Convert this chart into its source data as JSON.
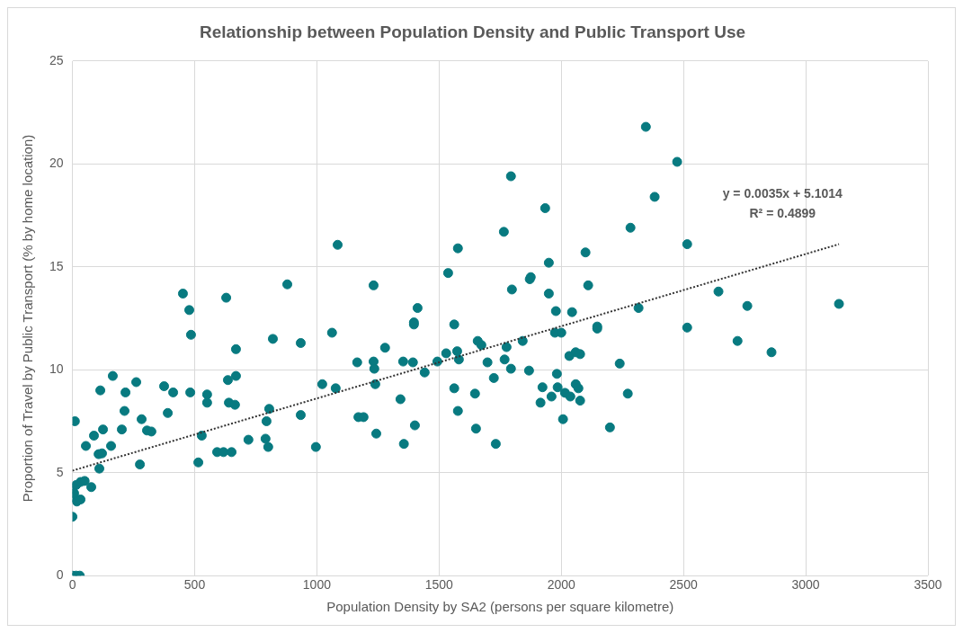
{
  "chart_data": {
    "type": "scatter",
    "title": "Relationship between Population Density and Public Transport Use",
    "xlabel": "Population Density by SA2 (persons per square kilometre)",
    "ylabel": "Proportion of Travel by Public Transport (% by home location)",
    "xlim": [
      0,
      3500
    ],
    "xticks": [
      0,
      500,
      1000,
      1500,
      2000,
      2500,
      3000,
      3500
    ],
    "ylim": [
      0,
      25
    ],
    "yticks": [
      0,
      5,
      10,
      15,
      20,
      25
    ],
    "grid": true,
    "legend": false,
    "marker": "circle",
    "annotations": [
      "y = 0.0035x + 5.1014",
      "R² = 0.4899"
    ],
    "series": [
      {
        "color": "#087a80",
        "x": [
          0,
          15,
          30,
          0,
          0,
          15,
          33,
          50,
          77,
          7,
          18,
          33,
          7,
          10,
          55,
          88,
          107,
          121,
          110,
          125,
          158,
          114,
          165,
          202,
          213,
          217,
          261,
          276,
          283,
          305,
          323,
          375,
          390,
          412,
          452,
          478,
          485,
          482,
          515,
          529,
          551,
          551,
          592,
          618,
          629,
          636,
          640,
          651,
          665,
          669,
          669,
          720,
          790,
          794,
          801,
          805,
          820,
          879,
          934,
          934,
          996,
          1022,
          1062,
          1077,
          1085,
          1165,
          1170,
          1191,
          1232,
          1232,
          1235,
          1239,
          1243,
          1279,
          1342,
          1353,
          1356,
          1393,
          1397,
          1397,
          1401,
          1412,
          1441,
          1493,
          1529,
          1537,
          1562,
          1562,
          1574,
          1577,
          1577,
          1581,
          1647,
          1651,
          1658,
          1673,
          1698,
          1724,
          1732,
          1765,
          1768,
          1776,
          1794,
          1794,
          1798,
          1842,
          1868,
          1871,
          1875,
          1915,
          1923,
          1934,
          1949,
          1949,
          1960,
          1974,
          1978,
          1982,
          1985,
          2000,
          2007,
          2015,
          2033,
          2037,
          2044,
          2059,
          2059,
          2070,
          2077,
          2077,
          2099,
          2110,
          2147,
          2147,
          2199,
          2239,
          2272,
          2283,
          2316,
          2346,
          2382,
          2474,
          2515,
          2515,
          2643,
          2721,
          2761,
          2860,
          3136
        ],
        "values": [
          0,
          0,
          0,
          2.86,
          4.25,
          4.4,
          4.55,
          4.6,
          4.3,
          3.8,
          3.6,
          3.7,
          4.0,
          7.5,
          6.3,
          6.8,
          5.9,
          5.94,
          5.2,
          7.1,
          6.3,
          9.0,
          9.7,
          7.1,
          8.0,
          8.9,
          9.4,
          5.4,
          7.6,
          7.05,
          7.0,
          9.2,
          7.9,
          8.9,
          13.7,
          12.9,
          11.7,
          8.9,
          5.5,
          6.8,
          8.8,
          8.4,
          6.0,
          6.0,
          13.5,
          9.5,
          8.4,
          6.0,
          8.3,
          11.0,
          9.7,
          6.6,
          6.65,
          7.5,
          6.25,
          8.1,
          11.5,
          14.15,
          11.3,
          7.8,
          6.25,
          9.3,
          11.8,
          9.1,
          16.07,
          10.36,
          7.7,
          7.7,
          14.1,
          10.4,
          10.05,
          9.3,
          6.9,
          11.07,
          8.57,
          10.4,
          6.4,
          10.36,
          12.3,
          12.2,
          7.3,
          13.0,
          9.87,
          10.4,
          10.8,
          14.7,
          12.2,
          9.1,
          10.9,
          15.9,
          8.0,
          10.5,
          8.84,
          7.14,
          11.4,
          11.2,
          10.36,
          9.6,
          6.4,
          16.7,
          10.5,
          11.1,
          10.05,
          19.4,
          13.9,
          11.4,
          9.96,
          14.4,
          14.5,
          8.4,
          9.15,
          17.85,
          13.7,
          15.2,
          8.7,
          11.8,
          12.85,
          9.8,
          9.15,
          11.8,
          7.6,
          8.88,
          10.67,
          8.7,
          12.8,
          10.85,
          9.3,
          9.1,
          10.76,
          8.5,
          15.7,
          14.1,
          12.1,
          12.0,
          7.2,
          10.3,
          8.84,
          16.9,
          13.0,
          21.8,
          18.4,
          20.1,
          16.1,
          12.05,
          13.8,
          11.4,
          13.1,
          10.85,
          13.2
        ]
      },
      {
        "type": "line",
        "color": "#333333",
        "line_style": "dotted",
        "marker": "none",
        "x": [
          0,
          3136
        ],
        "values": [
          5.1,
          16.1
        ]
      }
    ]
  }
}
